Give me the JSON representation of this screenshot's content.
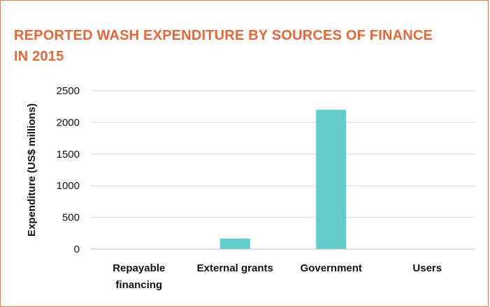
{
  "title": "REPORTED WASH EXPENDITURE BY SOURCES OF FINANCE IN 2015",
  "colors": {
    "title": "#e4673a",
    "border": "#e07a4f",
    "bar": "#62cdcb",
    "grid": "#d9d9d9"
  },
  "chart_data": {
    "type": "bar",
    "categories": [
      "Repayable financing",
      "External grants",
      "Government",
      "Users"
    ],
    "category_lines": [
      [
        "Repayable",
        "financing"
      ],
      [
        "External grants"
      ],
      [
        "Government"
      ],
      [
        "Users"
      ]
    ],
    "values": [
      0,
      165,
      2200,
      0
    ],
    "ylabel": "Expenditure (US$ millions)",
    "xlabel": "",
    "ylim": [
      0,
      2500
    ],
    "yticks": [
      0,
      500,
      1000,
      1500,
      2000,
      2500
    ],
    "grid": true,
    "legend": "none"
  }
}
